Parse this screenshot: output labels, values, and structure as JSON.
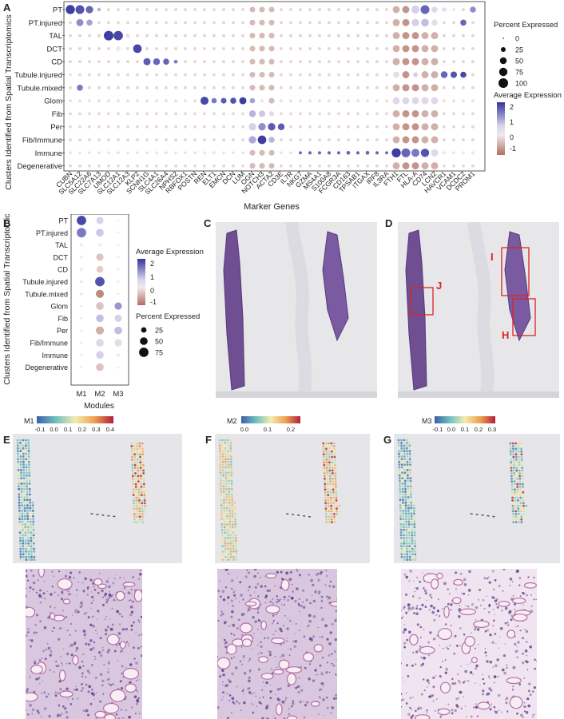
{
  "panels": {
    "A": "A",
    "B": "B",
    "C": "C",
    "D": "D",
    "E": "E",
    "F": "F",
    "G": "G",
    "H": "H",
    "I": "I",
    "J": "J"
  },
  "panelA": {
    "ylabel": "Clusters Identified from Spatial Transcriptomics",
    "xlabel": "Marker Genes",
    "clusters": [
      "PT",
      "PT.injured",
      "TAL",
      "DCT",
      "CD",
      "Tubule.injured",
      "Tubule.mixed",
      "Glom",
      "Fib",
      "Per",
      "Fib/Immune",
      "Immune",
      "Degenerative"
    ],
    "genes": [
      "CUBN",
      "SLC5A12",
      "SLC22A6",
      "SLC7A13",
      "UMOD",
      "SLC12A1",
      "SLC12A3",
      "KLP2",
      "SCNN1G",
      "SLC4A1",
      "SLC26A4",
      "NPHS2",
      "RBFOX1",
      "POSTN",
      "REN",
      "ELT1",
      "EMCN",
      "DCN",
      "LUM",
      "OGN",
      "NOTCH3",
      "ACTA2",
      "CD3E",
      "IL7R",
      "NKG7",
      "GZMA",
      "MS4A1",
      "S100A8",
      "FCGR3A",
      "CD163",
      "TPSAB1",
      "ITGAX",
      "IRF8",
      "IL3RA",
      "FTH1",
      "FTL",
      "HLA-A",
      "CD74",
      "LCN2",
      "HAVCR1",
      "VCAM1",
      "DCDC2",
      "PROM1"
    ],
    "legend_pct_title": "Percent Expressed",
    "legend_pct": [
      "0",
      "25",
      "50",
      "75",
      "100"
    ],
    "legend_avg_title": "Average Expression",
    "legend_avg_ticks": [
      "2",
      "1",
      "0",
      "-1"
    ]
  },
  "panelB": {
    "ylabel": "Clusters Identified from Spatial Transcriptomics",
    "xlabel": "Modules",
    "clusters": [
      "PT",
      "PT.injured",
      "TAL",
      "DCT",
      "CD",
      "Tubule.injured",
      "Tubule.mixed",
      "Glom",
      "Fib",
      "Per",
      "Fib/Immune",
      "Immune",
      "Degenerative"
    ],
    "modules": [
      "M1",
      "M2",
      "M3"
    ],
    "legend_avg_title": "Average Expression",
    "legend_avg_ticks": [
      "2",
      "1",
      "0",
      "-1"
    ],
    "legend_pct_title": "Percent Expressed",
    "legend_pct": [
      "25",
      "50",
      "75"
    ]
  },
  "panelD": {
    "labels": [
      "I",
      "J",
      "H"
    ]
  },
  "colorbars": {
    "M1": {
      "title": "M1",
      "ticks": [
        "-0.1",
        "0.0",
        "0.1",
        "0.2",
        "0.3",
        "0.4"
      ]
    },
    "M2": {
      "title": "M2",
      "ticks": [
        "0.0",
        "0.1",
        "0.2"
      ]
    },
    "M3": {
      "title": "M3",
      "ticks": [
        "-0.1",
        "0.0",
        "0.1",
        "0.2",
        "0.3"
      ]
    }
  },
  "colors": {
    "high": "#3b3ba8",
    "mid": "#e8e4ee",
    "low": "#b97f6e",
    "tissue": "#7c5a9c",
    "hotspot_red": "#d62c2c",
    "box_red": "#d22"
  }
}
